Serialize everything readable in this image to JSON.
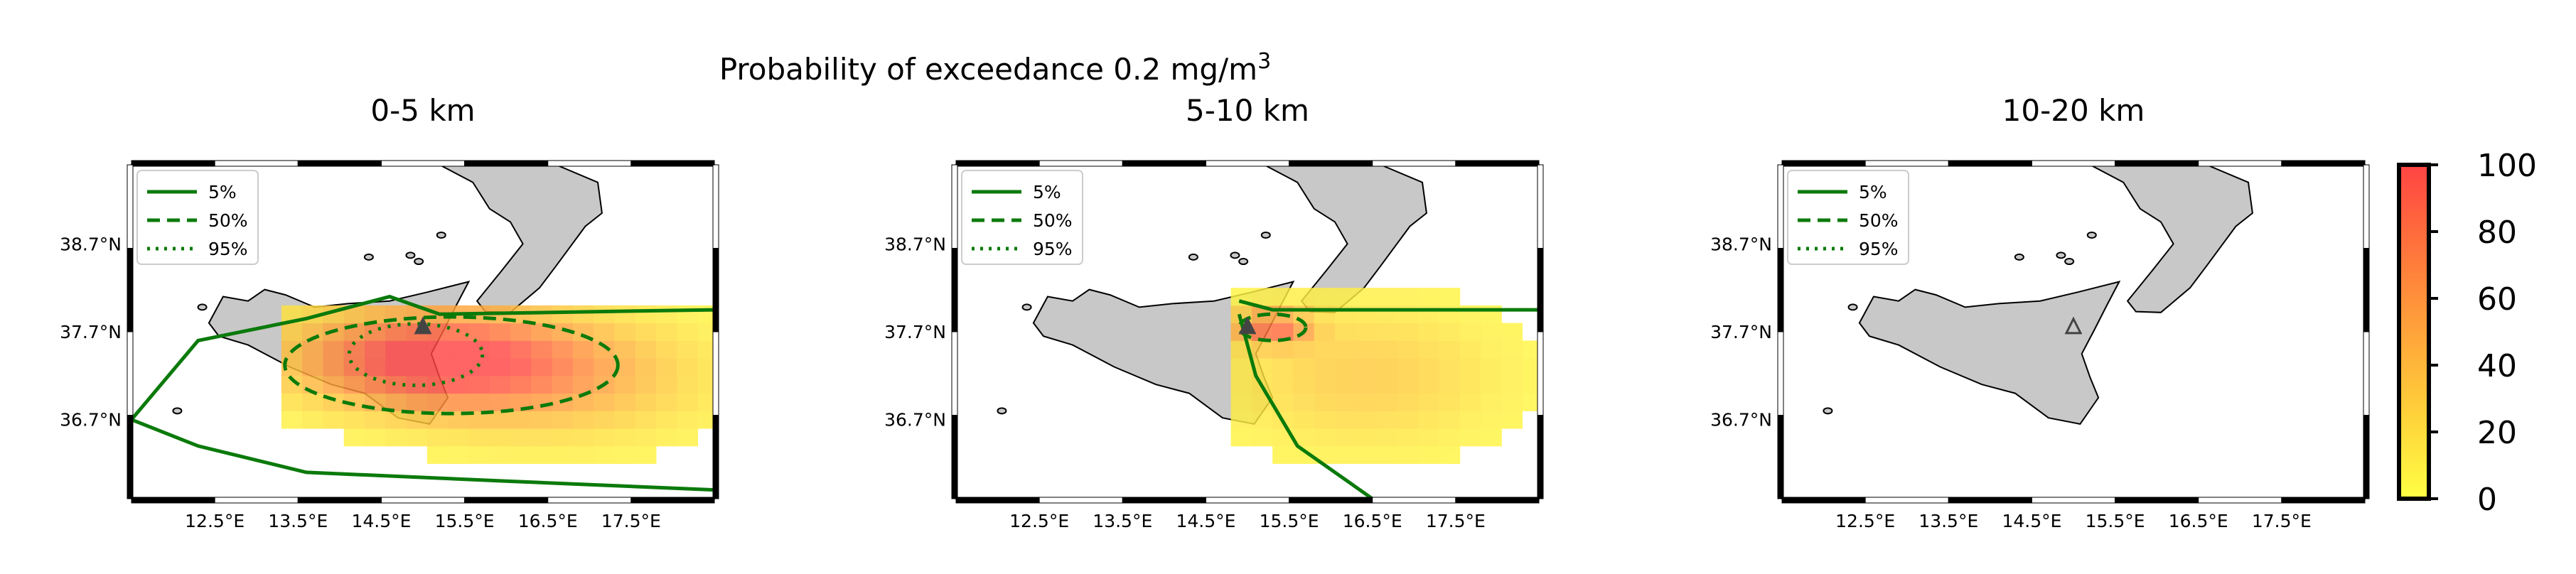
{
  "figure": {
    "suptitle": "Probability of exceedance 0.2 mg/m",
    "suptitle_superscript": "3"
  },
  "chart_data": [
    {
      "type": "heatmap",
      "title": "0-5 km",
      "xlabel": "",
      "ylabel": "",
      "x_ticks": [
        "12.5°E",
        "13.5°E",
        "14.5°E",
        "15.5°E",
        "16.5°E",
        "17.5°E"
      ],
      "y_ticks": [
        "38.7°N",
        "37.7°N",
        "36.7°N"
      ],
      "legend": [
        "5%",
        "50%",
        "95%"
      ],
      "legend_placement": "top-left",
      "source_marker": {
        "lon": 15.0,
        "lat": 37.75
      },
      "probability_field": {
        "x_lon": [
          11.5,
          18.5
        ],
        "y_lat": [
          35.8,
          39.6
        ],
        "blobs": [
          {
            "lon": 15.0,
            "lat": 37.4,
            "amp": 95,
            "sx": 1.6,
            "sy": 0.55
          },
          {
            "lon": 16.6,
            "lat": 37.2,
            "amp": 45,
            "sx": 1.8,
            "sy": 0.7
          }
        ],
        "cutoff": 6,
        "extent": {
          "lon_min": 13.3,
          "lon_max": 18.5,
          "lat_min": 36.0,
          "lat_max": 38.0
        }
      }
    },
    {
      "type": "heatmap",
      "title": "5-10 km",
      "xlabel": "",
      "ylabel": "",
      "x_ticks": [
        "12.5°E",
        "13.5°E",
        "14.5°E",
        "15.5°E",
        "16.5°E",
        "17.5°E"
      ],
      "y_ticks": [
        "38.7°N",
        "37.7°N",
        "36.7°N"
      ],
      "legend": [
        "5%",
        "50%",
        "95%"
      ],
      "legend_placement": "top-left",
      "source_marker": {
        "lon": 15.0,
        "lat": 37.75
      },
      "probability_field": {
        "x_lon": [
          11.5,
          18.5
        ],
        "y_lat": [
          35.8,
          39.6
        ],
        "blobs": [
          {
            "lon": 15.3,
            "lat": 37.75,
            "amp": 75,
            "sx": 0.45,
            "sy": 0.2
          },
          {
            "lon": 16.4,
            "lat": 37.2,
            "amp": 30,
            "sx": 1.6,
            "sy": 0.8
          }
        ],
        "cutoff": 5,
        "extent": {
          "lon_min": 14.8,
          "lon_max": 18.5,
          "lat_min": 36.0,
          "lat_max": 38.1
        }
      }
    },
    {
      "type": "heatmap",
      "title": "10-20 km",
      "xlabel": "",
      "ylabel": "",
      "x_ticks": [
        "12.5°E",
        "13.5°E",
        "14.5°E",
        "15.5°E",
        "16.5°E",
        "17.5°E"
      ],
      "y_ticks": [
        "38.7°N",
        "37.7°N",
        "36.7°N"
      ],
      "legend": [
        "5%",
        "50%",
        "95%"
      ],
      "legend_placement": "top-left",
      "source_marker": {
        "lon": 15.0,
        "lat": 37.75
      },
      "probability_field": null
    }
  ],
  "colorbar": {
    "ticks": [
      "100",
      "80",
      "60",
      "40",
      "20",
      "0"
    ],
    "range": [
      0,
      100
    ],
    "colors": [
      "#ffff44",
      "#ffd23a",
      "#ff9a3a",
      "#ff6a3c",
      "#ff4444"
    ]
  },
  "colors": {
    "land": "#c8c8c8",
    "contour": "#0b7a0b",
    "coast": "#000000"
  }
}
